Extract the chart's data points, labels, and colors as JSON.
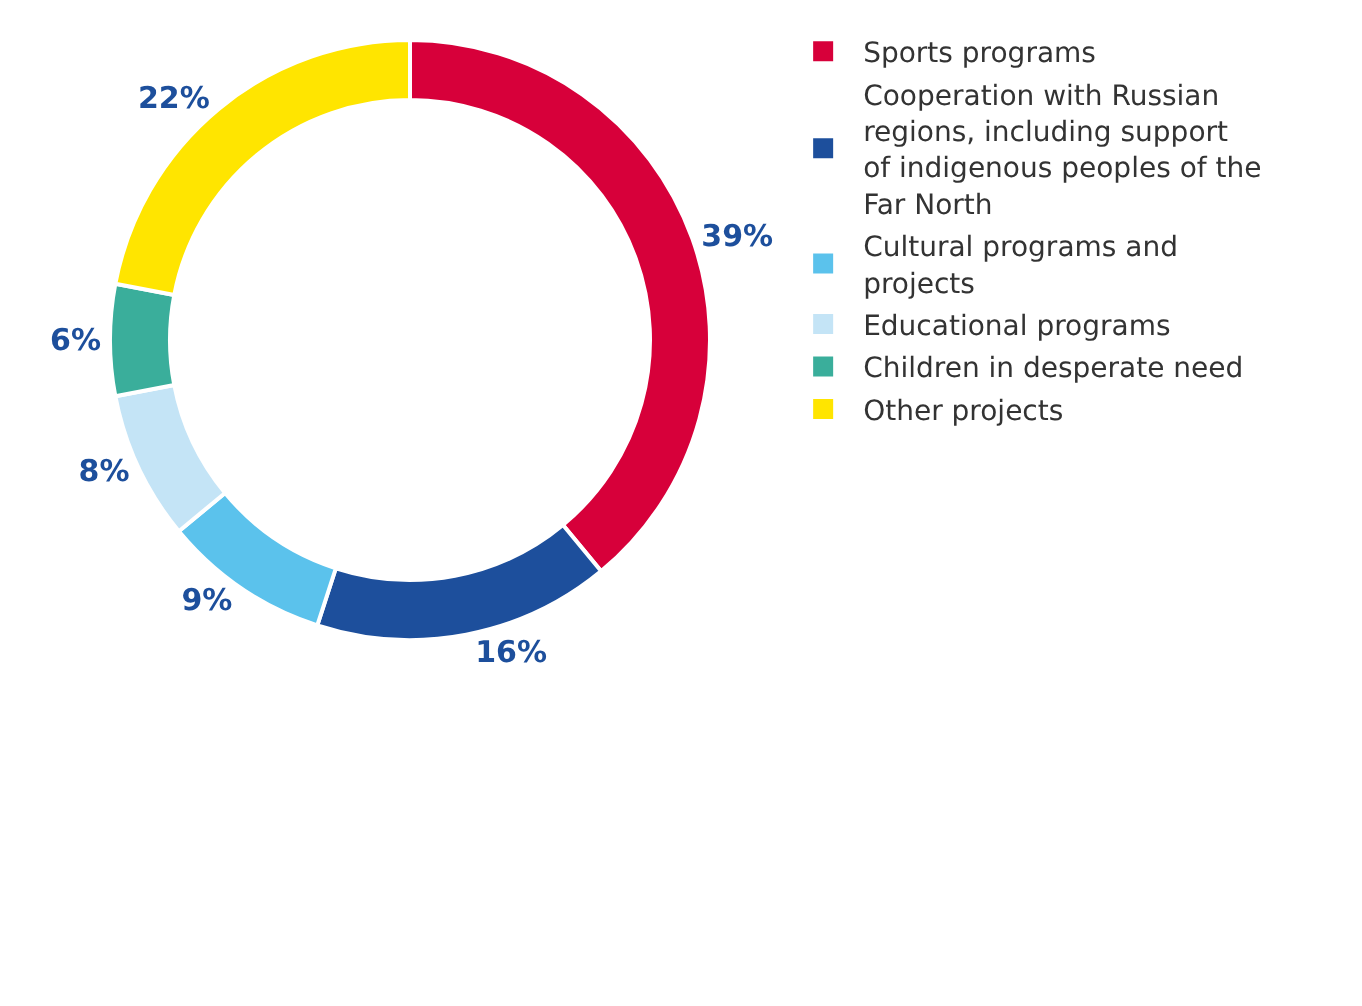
{
  "chart_data": {
    "type": "donut",
    "categories": [
      "Sports programs",
      "Cooperation with Russian regions, including support of indigenous peoples of the Far North",
      "Cultural programs and projects",
      "Educational programs",
      "Children in desperate need",
      "Other projects"
    ],
    "values": [
      39,
      16,
      9,
      8,
      6,
      22
    ],
    "colors": [
      "#d7003a",
      "#1d4f9c",
      "#5bc2ec",
      "#c4e4f6",
      "#3aae9b",
      "#ffe500"
    ],
    "value_labels": [
      "39%",
      "16%",
      "9%",
      "8%",
      "6%",
      "22%"
    ],
    "legend": "right"
  }
}
